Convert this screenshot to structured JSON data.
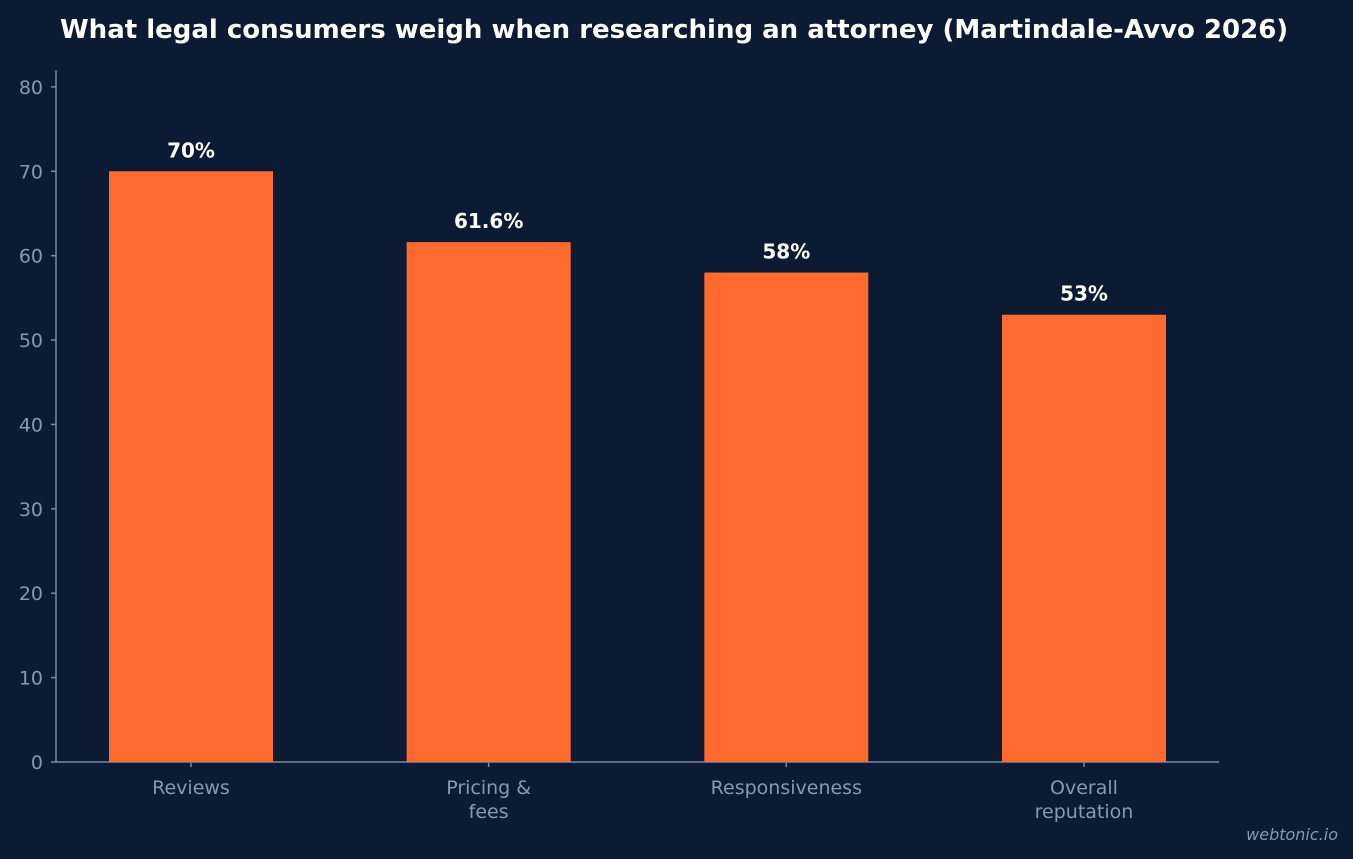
{
  "chart_data": {
    "type": "bar",
    "title": "What legal consumers weigh when researching an attorney (Martindale-Avvo 2026)",
    "categories": [
      [
        "Reviews"
      ],
      [
        "Pricing &",
        "fees"
      ],
      [
        "Responsiveness"
      ],
      [
        "Overall",
        "reputation"
      ]
    ],
    "values": [
      70,
      61.6,
      58,
      53
    ],
    "data_labels": [
      "70%",
      "61.6%",
      "58%",
      "53%"
    ],
    "y_ticks": [
      0,
      10,
      20,
      30,
      40,
      50,
      60,
      70,
      80
    ],
    "ylim": [
      0,
      82
    ],
    "grid": false,
    "xlabel": "",
    "ylabel": "",
    "colors": {
      "background": "#0c1b33",
      "bar": "#ff6b2f",
      "axis": "#7b879c",
      "tick_text": "#8a97ad",
      "label_text": "#ffffff"
    }
  },
  "watermark": "webtonic.io"
}
